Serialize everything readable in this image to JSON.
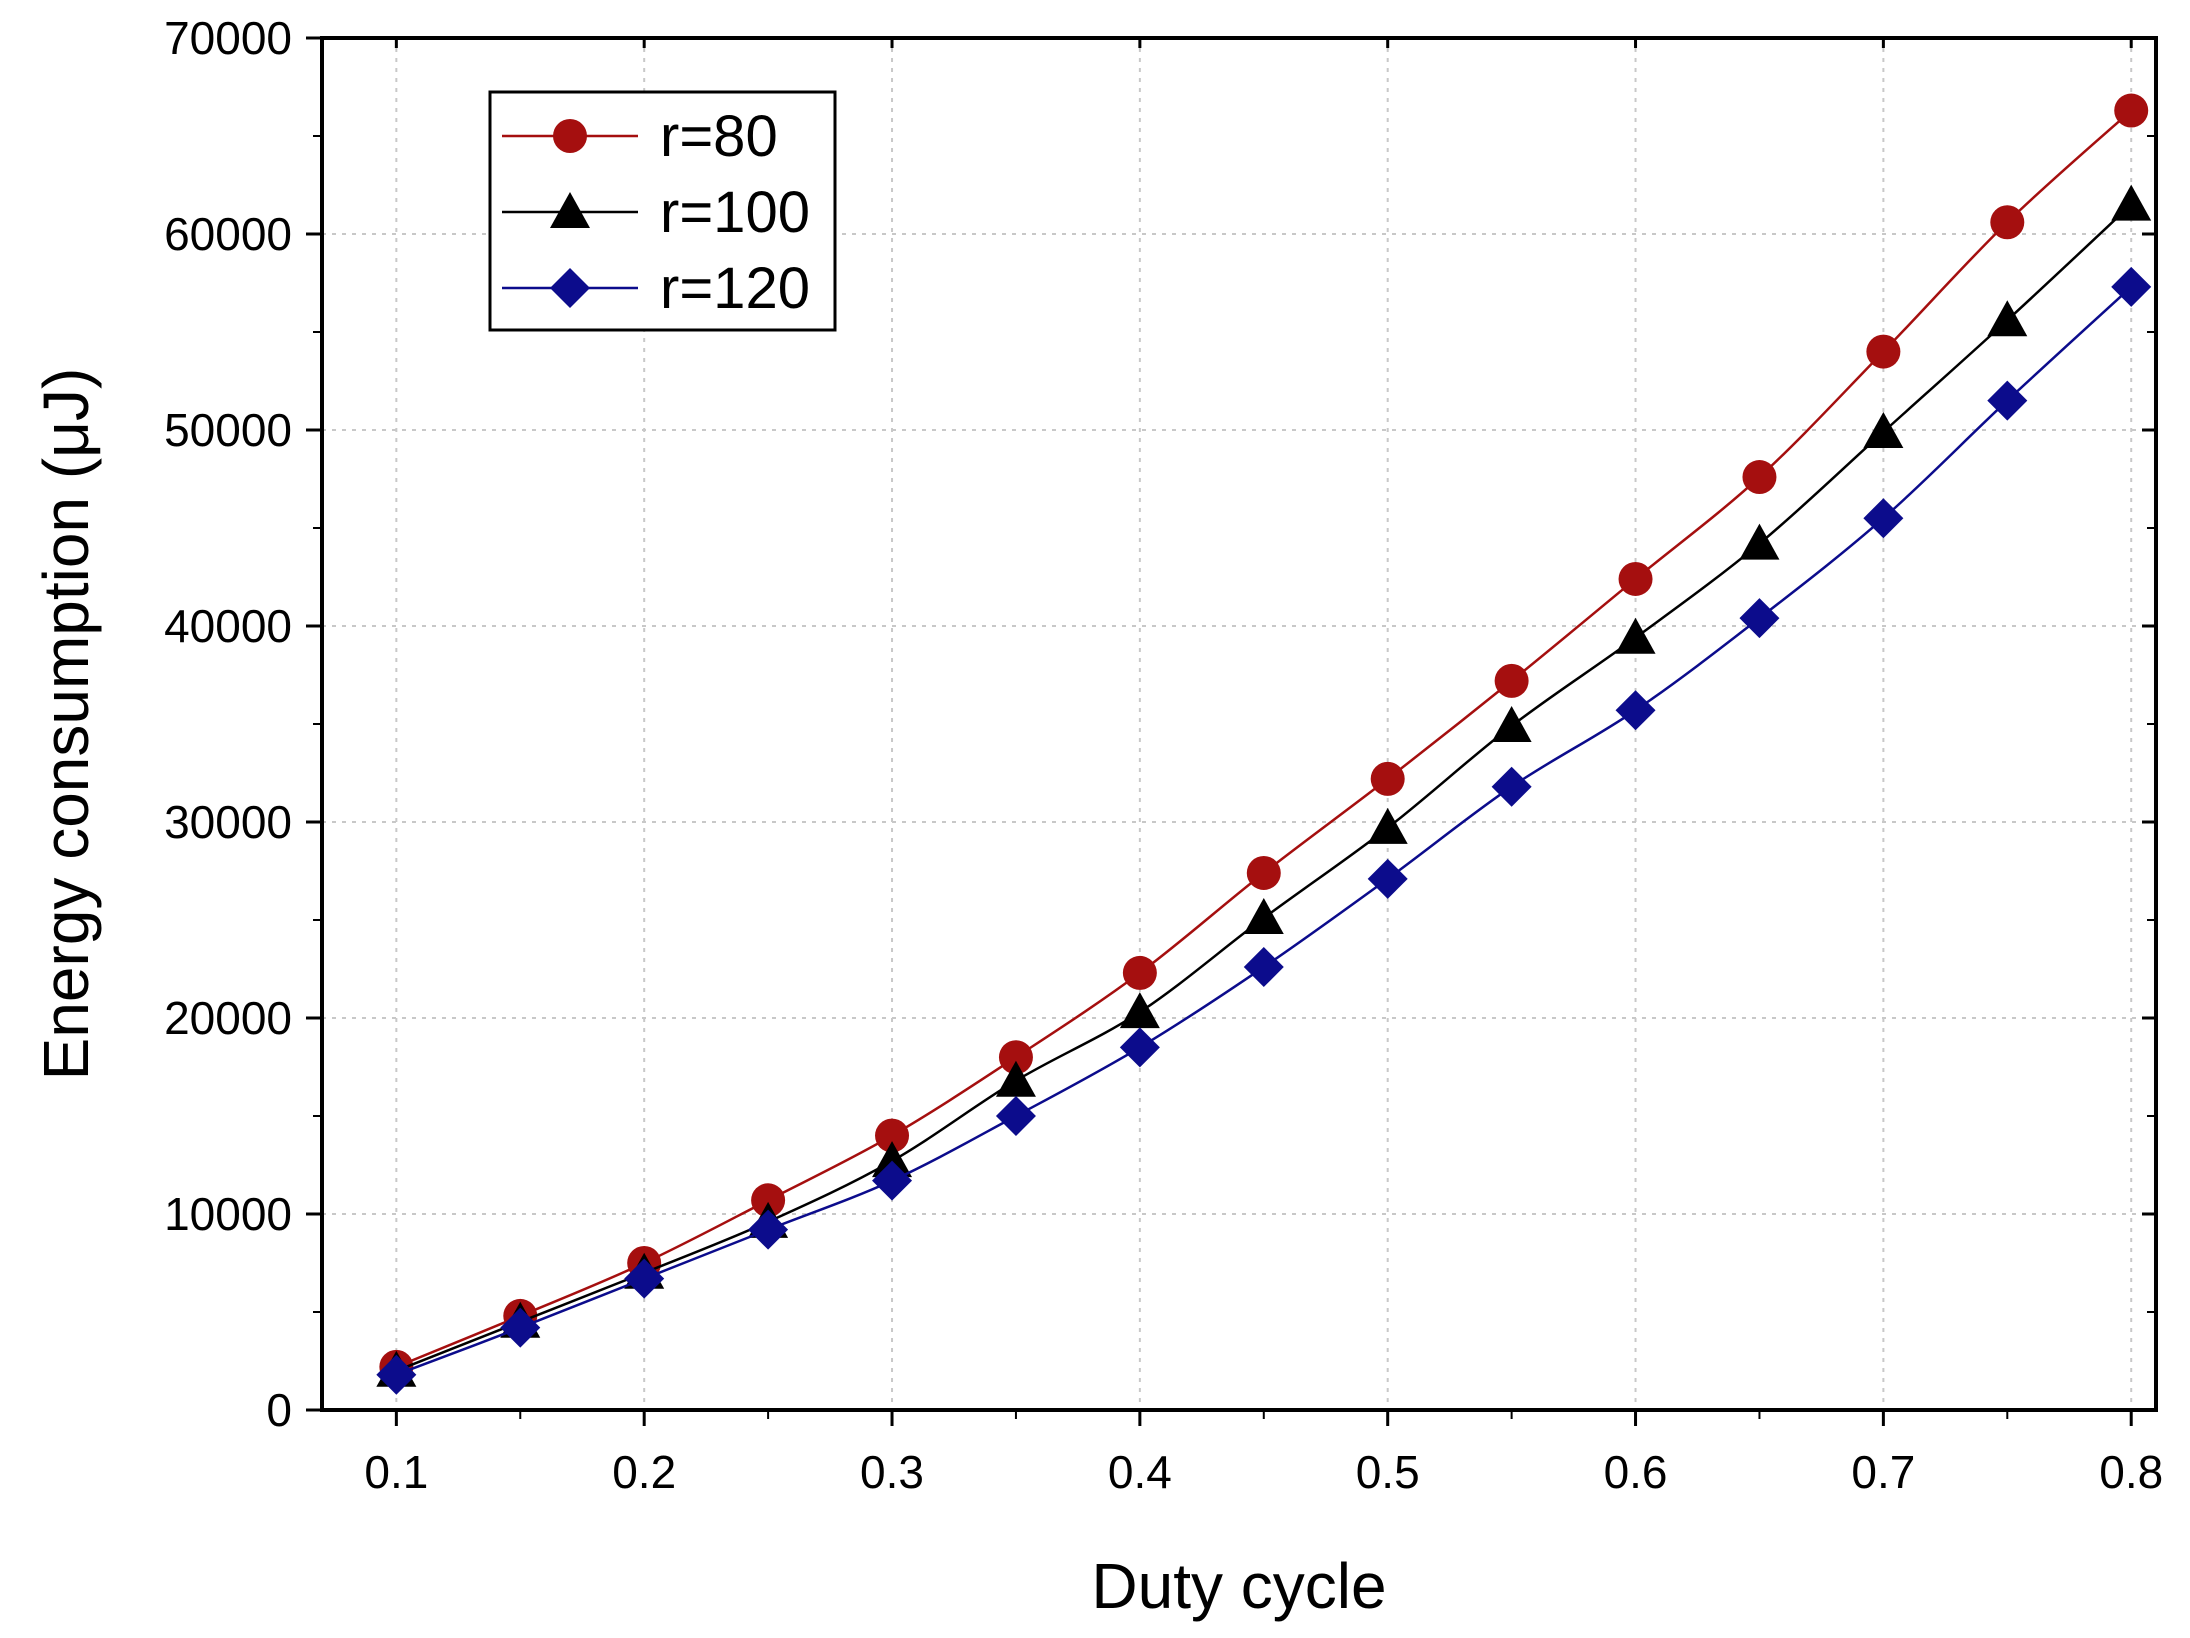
{
  "chart_data": {
    "type": "line",
    "title": "",
    "xlabel": "Duty cycle",
    "ylabel": "Energy consumption (μJ)",
    "xlim": [
      0.07,
      0.81
    ],
    "ylim": [
      0,
      70000
    ],
    "x_ticks": [
      0.1,
      0.2,
      0.3,
      0.4,
      0.5,
      0.6,
      0.7,
      0.8
    ],
    "x_tick_labels": [
      "0.1",
      "0.2",
      "0.3",
      "0.4",
      "0.5",
      "0.6",
      "0.7",
      "0.8"
    ],
    "y_ticks": [
      0,
      10000,
      20000,
      30000,
      40000,
      50000,
      60000,
      70000
    ],
    "y_tick_labels": [
      "0",
      "10000",
      "20000",
      "30000",
      "40000",
      "50000",
      "60000",
      "70000"
    ],
    "grid": true,
    "legend_position": "top-left",
    "x": [
      0.1,
      0.15,
      0.2,
      0.25,
      0.3,
      0.35,
      0.4,
      0.45,
      0.5,
      0.55,
      0.6,
      0.65,
      0.7,
      0.75,
      0.8
    ],
    "series": [
      {
        "name": "r=80",
        "color": "#a50f0f",
        "marker": "circle",
        "values": [
          2200,
          4800,
          7500,
          10700,
          14000,
          18000,
          22300,
          27400,
          32200,
          37200,
          42400,
          47600,
          54000,
          60600,
          66300
        ]
      },
      {
        "name": "r=100",
        "color": "#000000",
        "marker": "triangle",
        "values": [
          2000,
          4500,
          7000,
          9600,
          12700,
          16800,
          20300,
          25100,
          29700,
          34900,
          39400,
          44200,
          49900,
          55600,
          61500
        ]
      },
      {
        "name": "r=120",
        "color": "#0c0c8c",
        "marker": "diamond",
        "values": [
          1800,
          4200,
          6700,
          9200,
          11700,
          15000,
          18500,
          22600,
          27100,
          31800,
          35700,
          40400,
          45500,
          51500,
          57300
        ]
      }
    ]
  }
}
